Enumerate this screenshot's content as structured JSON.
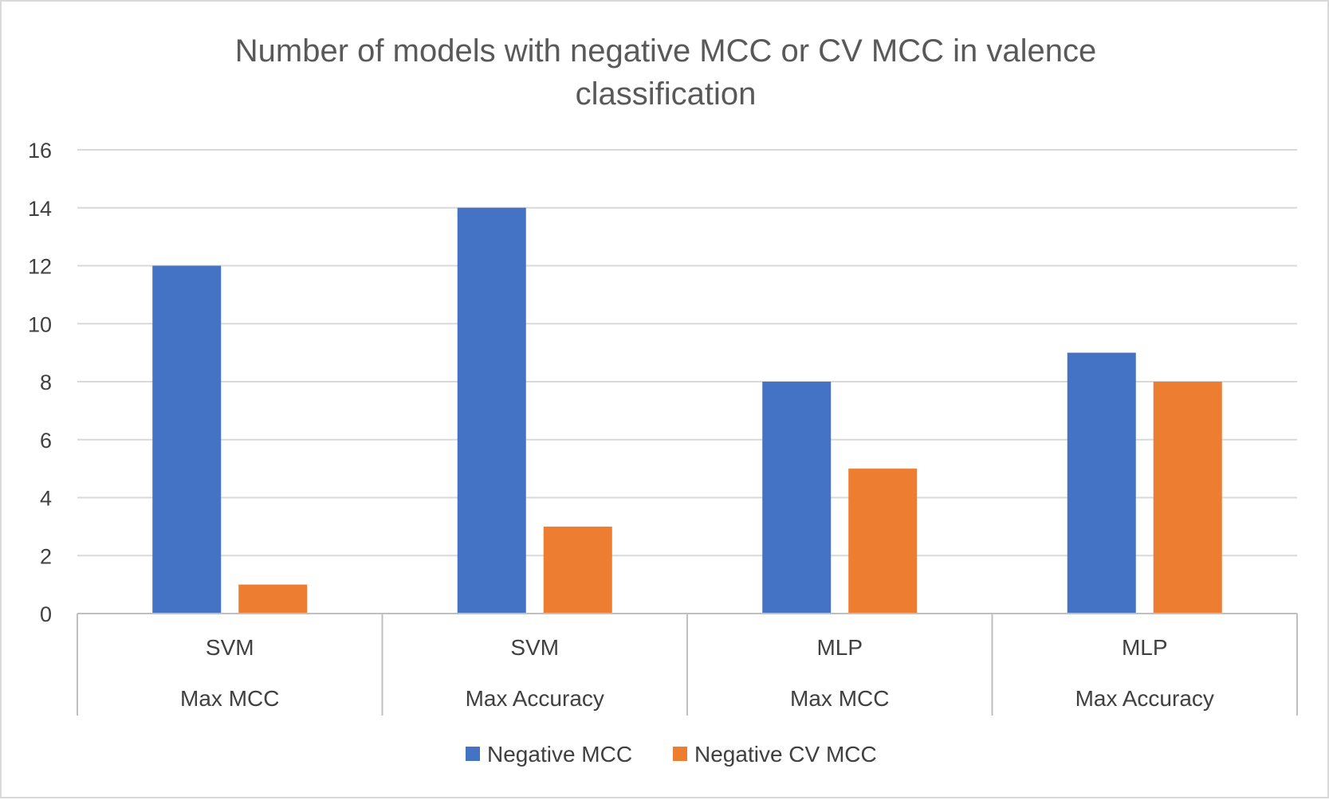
{
  "chart_data": {
    "type": "bar",
    "title_lines": [
      "Number of models with negative MCC or CV MCC in valence",
      "classification"
    ],
    "categories": [
      {
        "level1": "SVM",
        "level2": "Max MCC"
      },
      {
        "level1": "SVM",
        "level2": "Max Accuracy"
      },
      {
        "level1": "MLP",
        "level2": "Max MCC"
      },
      {
        "level1": "MLP",
        "level2": "Max Accuracy"
      }
    ],
    "series": [
      {
        "name": "Negative MCC",
        "color": "#4472C4",
        "values": [
          12,
          14,
          8,
          9
        ]
      },
      {
        "name": "Negative CV MCC",
        "color": "#ED7D31",
        "values": [
          1,
          3,
          5,
          8
        ]
      }
    ],
    "ylim": [
      0,
      16
    ],
    "yticks": [
      0,
      2,
      4,
      6,
      8,
      10,
      12,
      14,
      16
    ],
    "grid": true,
    "legend_position": "bottom",
    "colors": {
      "gridline": "#d9d9d9",
      "axis": "#bfbfbf",
      "border": "#d9d9d9"
    }
  }
}
